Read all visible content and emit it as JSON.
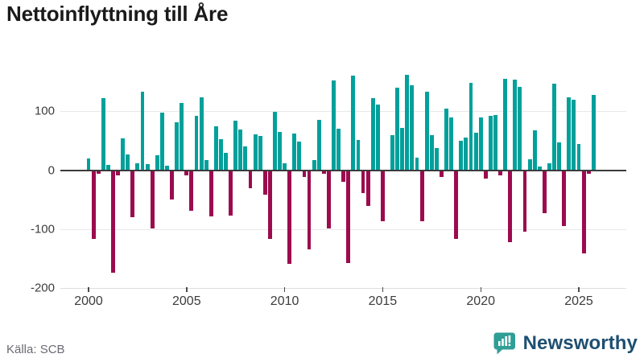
{
  "title": "Nettoinflyttning till Åre",
  "footer": {
    "source": "Källa: SCB",
    "brand": "Newsworthy"
  },
  "colors": {
    "positive": "#00A09B",
    "negative": "#9C0B4E",
    "zero_line": "#3b3b3b",
    "gridline": "#e9e9e9",
    "brand_icon": "#2F9E96",
    "brand_text": "#1e4f72"
  },
  "chart_data": {
    "type": "bar",
    "title": "Nettoinflyttning till Åre",
    "x_unit": "quarter",
    "x_start": "2000-Q1",
    "x_end": "2025-Q4",
    "values": [
      20,
      -116,
      -6,
      123,
      9,
      -174,
      -8,
      54,
      27,
      -80,
      12,
      133,
      11,
      -98,
      26,
      98,
      8,
      -50,
      82,
      114,
      -8,
      -69,
      92,
      124,
      18,
      -78,
      75,
      53,
      29,
      -77,
      84,
      69,
      40,
      -31,
      61,
      58,
      -42,
      -117,
      99,
      65,
      12,
      -158,
      63,
      49,
      -11,
      -134,
      18,
      85,
      -6,
      -98,
      153,
      70,
      -20,
      -157,
      160,
      51,
      -39,
      -61,
      122,
      111,
      -86,
      0,
      60,
      140,
      72,
      162,
      144,
      22,
      -87,
      133,
      59,
      38,
      -11,
      105,
      89,
      -116,
      50,
      55,
      148,
      64,
      89,
      -14,
      92,
      94,
      -8,
      155,
      -122,
      154,
      141,
      -104,
      19,
      68,
      7,
      -73,
      12,
      147,
      48,
      -94,
      124,
      120,
      44,
      -141,
      -6,
      128
    ],
    "x_ticks": [
      "2000",
      "2005",
      "2010",
      "2015",
      "2020",
      "2025"
    ],
    "y_ticks": [
      100,
      0,
      -100,
      -200
    ],
    "ylim": [
      -200,
      175
    ],
    "grid": "horizontal-only",
    "legend": "none",
    "positive_color": "#00A09B",
    "negative_color": "#9C0B4E",
    "ylabel": "",
    "xlabel": "",
    "source": "Källa: SCB"
  }
}
